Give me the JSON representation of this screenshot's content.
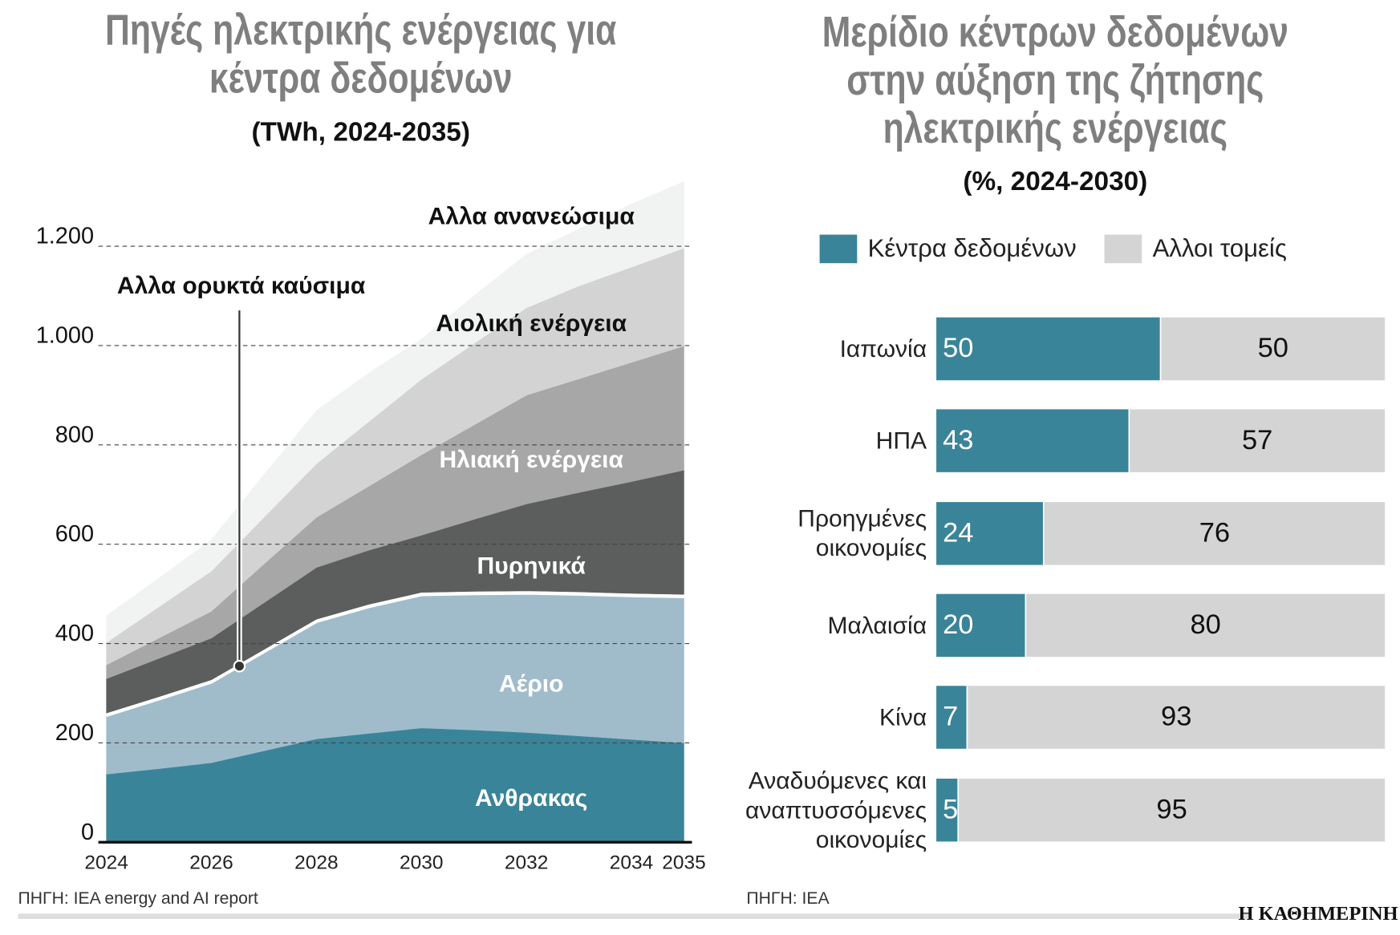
{
  "chart_data": [
    {
      "type": "area",
      "stacked": true,
      "title": "Πηγές ηλεκτρικής ενέργειας για κέντρα δεδομένων",
      "subtitle": "(TWh, 2024-2035)",
      "source": "ΠΗΓΗ: IEA energy and AI report",
      "x": [
        2024,
        2025,
        2026,
        2027,
        2028,
        2029,
        2030,
        2031,
        2032,
        2033,
        2034,
        2035
      ],
      "xlim": [
        2024,
        2035
      ],
      "xticks": [
        2024,
        2026,
        2028,
        2030,
        2032,
        2034,
        2035
      ],
      "ylim": [
        0,
        1350
      ],
      "yticks": [
        0,
        200,
        400,
        600,
        800,
        {
          "value": 1000,
          "label": "1.000"
        },
        {
          "value": 1200,
          "label": "1.200"
        }
      ],
      "grid": true,
      "series": [
        {
          "name": "Ανθρακας",
          "color": "#3a8499",
          "values": [
            137,
            148,
            160,
            184,
            208,
            219,
            230,
            226,
            221,
            214,
            207,
            200
          ]
        },
        {
          "name": "Αέριο",
          "color": "#a0bccb",
          "values": [
            118,
            140,
            162,
            199,
            236,
            255,
            268,
            274,
            280,
            285,
            289,
            294
          ]
        },
        {
          "name": "Αλλα ορυκτά καύσιμα",
          "color": "#ffffff",
          "values": [
            5,
            5,
            5,
            5,
            5,
            5,
            5,
            5,
            5,
            5,
            5,
            5
          ]
        },
        {
          "name": "Πυρηνικά",
          "color": "#5c5d5d",
          "values": [
            69,
            77,
            84,
            94,
            104,
            109,
            115,
            145,
            175,
            200,
            225,
            250
          ]
        },
        {
          "name": "Ηλιακή ενέργεια",
          "color": "#a7a7a7",
          "values": [
            28,
            41,
            54,
            78,
            101,
            129,
            162,
            190,
            219,
            229,
            240,
            250
          ]
        },
        {
          "name": "Αιολική ενέργεια",
          "color": "#d3d3d3",
          "values": [
            45,
            63,
            81,
            94,
            108,
            130,
            152,
            164,
            176,
            187,
            192,
            197
          ]
        },
        {
          "name": "Αλλα ανανεώσιμα",
          "color": "#f1f2f2",
          "values": [
            54,
            58,
            63,
            86,
            107,
            98,
            81,
            96,
            108,
            115,
            127,
            134
          ]
        }
      ]
    },
    {
      "type": "bar",
      "orientation": "horizontal",
      "stacked": true,
      "title": "Μερίδιο κέντρων δεδομένων στην αύξηση της ζήτησης ηλεκτρικής ενέργειας",
      "subtitle": "(%, 2024-2030)",
      "source": "ΠΗΓΗ: IEA",
      "categories": [
        "Ιαπωνία",
        "ΗΠΑ",
        "Προηγμένες οικονομίες",
        "Μαλαισία",
        "Κίνα",
        "Αναδυόμενες και αναπτυσσόμενες οικονομίες"
      ],
      "xlim": [
        0,
        100
      ],
      "legend": "top",
      "series": [
        {
          "name": "Κέντρα δεδομένων",
          "color": "#3a8499",
          "values": [
            50,
            43,
            24,
            20,
            7,
            5
          ]
        },
        {
          "name": "Αλλοι τομείς",
          "color": "#d4d4d4",
          "values": [
            50,
            57,
            76,
            80,
            93,
            95
          ]
        }
      ]
    }
  ],
  "brand": "Η ΚΑΘΗΜΕΡΙΝΗ"
}
